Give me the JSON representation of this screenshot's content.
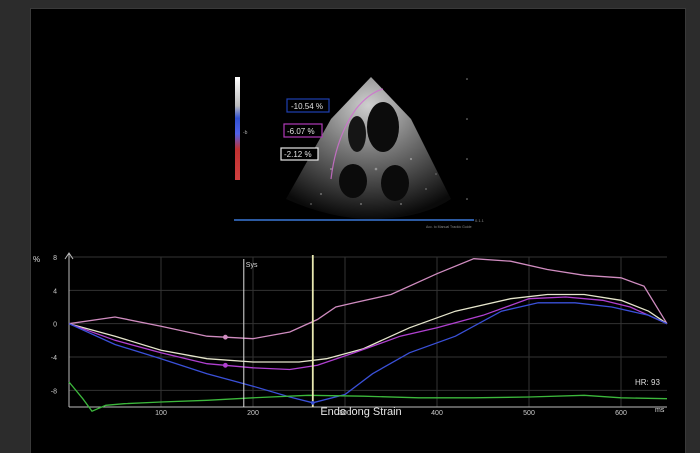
{
  "echo": {
    "readouts": [
      {
        "text": "-10.54  %",
        "border": "#1f3fb0"
      },
      {
        "text": "-6.07  %",
        "border": "#b03ab8"
      },
      {
        "text": "-2.12 %",
        "border": "#e6e6e6"
      }
    ],
    "scale_label": "-b",
    "footer_text": "Acc. to Manual Trackic Guide",
    "side_marker": "0.1.1"
  },
  "chart_data": {
    "type": "line",
    "title": "Endo long Strain",
    "xlabel": "ms",
    "ylabel": "%",
    "xlim": [
      0,
      650
    ],
    "ylim": [
      -10,
      8
    ],
    "xticks": [
      100,
      200,
      300,
      400,
      500,
      600
    ],
    "yticks": [
      8,
      4,
      0,
      -4,
      -8
    ],
    "event_marker": {
      "label": "Sys",
      "x": 190
    },
    "cursor_x": 265,
    "hr_label": "HR: 93",
    "series": [
      {
        "color": "#d08cc0",
        "points": [
          [
            0,
            0
          ],
          [
            50,
            0.8
          ],
          [
            100,
            -0.3
          ],
          [
            150,
            -1.5
          ],
          [
            200,
            -1.8
          ],
          [
            240,
            -1.0
          ],
          [
            270,
            0.5
          ],
          [
            290,
            2.0
          ],
          [
            310,
            2.5
          ],
          [
            350,
            3.5
          ],
          [
            400,
            6.0
          ],
          [
            440,
            7.8
          ],
          [
            480,
            7.5
          ],
          [
            520,
            6.5
          ],
          [
            560,
            5.8
          ],
          [
            600,
            5.5
          ],
          [
            625,
            4.5
          ],
          [
            650,
            0
          ]
        ],
        "marker_x": 170
      },
      {
        "color": "#e6e6cc",
        "points": [
          [
            0,
            0
          ],
          [
            50,
            -1.5
          ],
          [
            100,
            -3.2
          ],
          [
            150,
            -4.2
          ],
          [
            200,
            -4.6
          ],
          [
            250,
            -4.6
          ],
          [
            280,
            -4.2
          ],
          [
            320,
            -3.0
          ],
          [
            370,
            -0.5
          ],
          [
            420,
            1.5
          ],
          [
            480,
            3.0
          ],
          [
            520,
            3.5
          ],
          [
            560,
            3.5
          ],
          [
            600,
            2.8
          ],
          [
            630,
            1.5
          ],
          [
            650,
            0
          ]
        ]
      },
      {
        "color": "#b040d0",
        "points": [
          [
            0,
            0
          ],
          [
            50,
            -2.0
          ],
          [
            100,
            -3.5
          ],
          [
            150,
            -4.8
          ],
          [
            200,
            -5.3
          ],
          [
            240,
            -5.5
          ],
          [
            270,
            -5.0
          ],
          [
            310,
            -3.5
          ],
          [
            360,
            -1.5
          ],
          [
            400,
            -0.5
          ],
          [
            450,
            1.0
          ],
          [
            500,
            3.0
          ],
          [
            540,
            3.2
          ],
          [
            580,
            2.8
          ],
          [
            610,
            2.0
          ],
          [
            650,
            0
          ]
        ],
        "marker_x": 170
      },
      {
        "color": "#3a50d8",
        "points": [
          [
            0,
            0
          ],
          [
            50,
            -2.5
          ],
          [
            100,
            -4.2
          ],
          [
            150,
            -6.0
          ],
          [
            200,
            -7.5
          ],
          [
            240,
            -8.8
          ],
          [
            265,
            -9.5
          ],
          [
            300,
            -8.5
          ],
          [
            330,
            -6.0
          ],
          [
            370,
            -3.5
          ],
          [
            420,
            -1.5
          ],
          [
            470,
            1.5
          ],
          [
            510,
            2.5
          ],
          [
            550,
            2.5
          ],
          [
            590,
            2.0
          ],
          [
            630,
            1.0
          ],
          [
            650,
            0
          ]
        ]
      },
      {
        "color": "#3cb83c",
        "points": [
          [
            0,
            -7.0
          ],
          [
            15,
            -9.0
          ],
          [
            25,
            -10.5
          ],
          [
            40,
            -9.8
          ],
          [
            60,
            -9.6
          ],
          [
            100,
            -9.4
          ],
          [
            150,
            -9.2
          ],
          [
            200,
            -8.9
          ],
          [
            260,
            -8.6
          ],
          [
            320,
            -8.7
          ],
          [
            380,
            -8.9
          ],
          [
            440,
            -8.9
          ],
          [
            500,
            -8.8
          ],
          [
            560,
            -8.6
          ],
          [
            600,
            -8.9
          ],
          [
            650,
            -9.0
          ]
        ]
      }
    ]
  }
}
